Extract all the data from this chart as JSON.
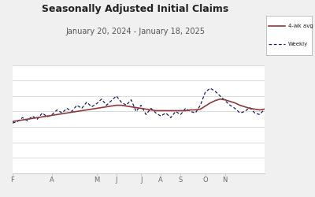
{
  "title": "Seasonally Adjusted Initial Claims",
  "subtitle": "January 20, 2024 - January 18, 2025",
  "solid_color": "#8B3A3A",
  "dashed_color": "#1a1a6e",
  "background_color": "#f0f0f0",
  "plot_bg_color": "#ffffff",
  "legend_label_solid": "4-wk avg",
  "legend_label_dashed": "Weekly",
  "x_tick_labels": [
    "F",
    "A",
    "M",
    "J",
    "J",
    "A",
    "S",
    "O",
    "N"
  ],
  "solid_values": [
    207,
    208,
    209,
    210,
    211,
    212,
    213,
    214,
    215,
    216,
    217,
    218,
    219,
    220,
    221,
    222,
    223,
    224,
    225,
    226,
    227,
    228,
    228,
    227,
    226,
    225,
    224,
    223,
    222,
    221,
    221,
    221,
    221,
    221,
    221,
    221,
    222,
    222,
    223,
    227,
    231,
    234,
    236,
    235,
    233,
    231,
    228,
    226,
    224,
    223,
    222,
    223
  ],
  "dashed_values": [
    205,
    207,
    212,
    208,
    214,
    210,
    218,
    213,
    216,
    222,
    218,
    224,
    220,
    228,
    224,
    232,
    226,
    230,
    236,
    228,
    234,
    240,
    232,
    228,
    235,
    220,
    228,
    216,
    224,
    218,
    214,
    218,
    212,
    220,
    216,
    224,
    220,
    218,
    228,
    245,
    250,
    246,
    240,
    234,
    228,
    224,
    218,
    220,
    225,
    218,
    216,
    223
  ],
  "ylim": [
    140,
    280
  ],
  "n_weeks": 52,
  "month_positions": [
    0,
    8,
    17,
    21,
    26,
    30,
    34,
    39,
    43
  ]
}
